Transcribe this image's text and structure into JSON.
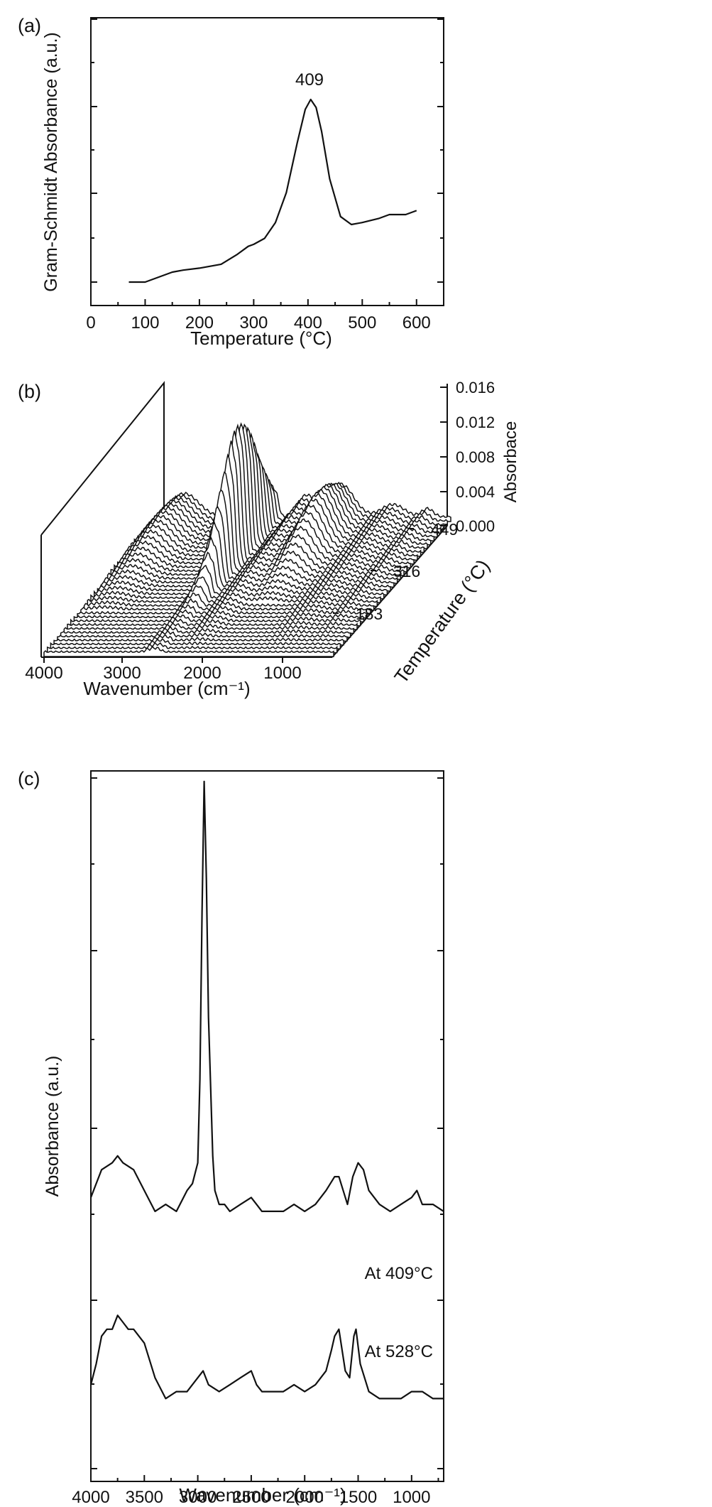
{
  "chart_data": [
    {
      "panel": "(a)",
      "type": "line",
      "xlabel": "Temperature (°C)",
      "ylabel": "Gram-Schmidt Absorbance (a.u.)",
      "xlim": [
        0,
        650
      ],
      "ylim": [
        0,
        1
      ],
      "xticks": [
        0,
        100,
        200,
        300,
        400,
        500,
        600
      ],
      "peak_label": "409",
      "x": [
        70,
        100,
        150,
        170,
        200,
        240,
        270,
        290,
        300,
        320,
        340,
        360,
        380,
        395,
        405,
        415,
        425,
        440,
        460,
        480,
        500,
        530,
        550,
        580,
        600
      ],
      "y": [
        0.0,
        0.0,
        0.05,
        0.06,
        0.07,
        0.09,
        0.14,
        0.18,
        0.19,
        0.22,
        0.3,
        0.45,
        0.7,
        0.87,
        0.92,
        0.88,
        0.76,
        0.52,
        0.33,
        0.29,
        0.3,
        0.32,
        0.34,
        0.34,
        0.36
      ]
    },
    {
      "panel": "(b)",
      "type": "line",
      "xlabel": "Wavenumber (cm⁻¹)",
      "ylabel": "Absorbace",
      "zlabel": "Temperature (°C)",
      "xticks": [
        4000,
        3000,
        2000,
        1000
      ],
      "yticks": [
        "0.000",
        "0.004",
        "0.008",
        "0.012",
        "0.016"
      ],
      "zticks": [
        "183",
        "316",
        "449"
      ]
    },
    {
      "panel": "(c)",
      "type": "line",
      "xlabel": "Wavenumber (cm⁻¹)",
      "ylabel": "Absorbance (a.u.)",
      "xlim": [
        4000,
        700
      ],
      "xticks": [
        4000,
        3500,
        3000,
        2500,
        2000,
        1500,
        1000
      ],
      "series": [
        {
          "name": "At 409°C",
          "x": [
            4000,
            3900,
            3800,
            3750,
            3700,
            3600,
            3500,
            3400,
            3300,
            3200,
            3100,
            3050,
            3000,
            2980,
            2960,
            2940,
            2920,
            2900,
            2880,
            2860,
            2840,
            2800,
            2750,
            2700,
            2600,
            2500,
            2450,
            2400,
            2300,
            2200,
            2100,
            2000,
            1900,
            1800,
            1720,
            1680,
            1600,
            1550,
            1500,
            1450,
            1400,
            1300,
            1200,
            1100,
            1000,
            950,
            900,
            800,
            700
          ],
          "y": [
            0.39,
            0.43,
            0.44,
            0.45,
            0.44,
            0.43,
            0.4,
            0.37,
            0.38,
            0.37,
            0.4,
            0.41,
            0.44,
            0.56,
            0.8,
            0.99,
            0.85,
            0.65,
            0.55,
            0.45,
            0.4,
            0.38,
            0.38,
            0.37,
            0.38,
            0.39,
            0.38,
            0.37,
            0.37,
            0.37,
            0.38,
            0.37,
            0.38,
            0.4,
            0.42,
            0.42,
            0.38,
            0.42,
            0.44,
            0.43,
            0.4,
            0.38,
            0.37,
            0.38,
            0.39,
            0.4,
            0.38,
            0.38,
            0.37
          ]
        },
        {
          "name": "At 528°C",
          "x": [
            4000,
            3950,
            3900,
            3850,
            3800,
            3750,
            3700,
            3650,
            3600,
            3500,
            3400,
            3300,
            3200,
            3100,
            3000,
            2950,
            2900,
            2800,
            2700,
            2600,
            2500,
            2450,
            2400,
            2300,
            2200,
            2100,
            2000,
            1900,
            1800,
            1750,
            1720,
            1680,
            1620,
            1580,
            1540,
            1520,
            1480,
            1400,
            1300,
            1200,
            1100,
            1000,
            900,
            800,
            700
          ],
          "y": [
            0.12,
            0.15,
            0.19,
            0.2,
            0.2,
            0.22,
            0.21,
            0.2,
            0.2,
            0.18,
            0.13,
            0.1,
            0.11,
            0.11,
            0.13,
            0.14,
            0.12,
            0.11,
            0.12,
            0.13,
            0.14,
            0.12,
            0.11,
            0.11,
            0.11,
            0.12,
            0.11,
            0.12,
            0.14,
            0.17,
            0.19,
            0.2,
            0.14,
            0.13,
            0.19,
            0.2,
            0.15,
            0.11,
            0.1,
            0.1,
            0.1,
            0.11,
            0.11,
            0.1,
            0.1
          ]
        }
      ]
    }
  ],
  "panels": {
    "a": "(a)",
    "b": "(b)",
    "c": "(c)"
  }
}
